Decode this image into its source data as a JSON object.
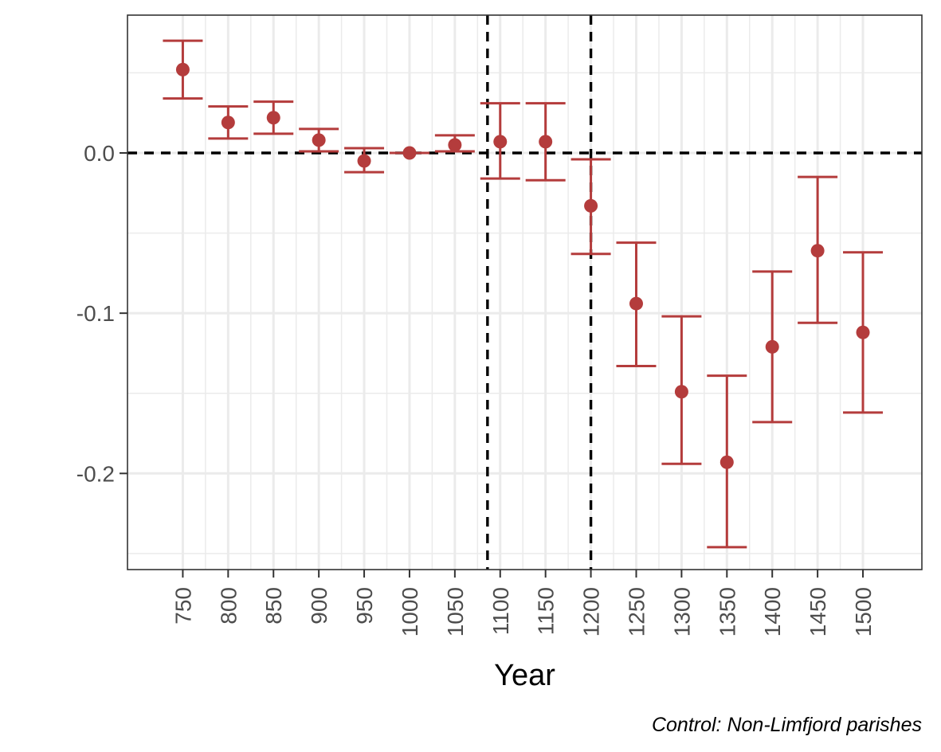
{
  "chart_data": {
    "type": "errorbar",
    "title": "",
    "xlabel": "Year",
    "ylabel": "",
    "caption": "Control: Non-Limfjord parishes",
    "x": [
      750,
      800,
      850,
      900,
      950,
      1000,
      1050,
      1100,
      1150,
      1200,
      1250,
      1300,
      1350,
      1400,
      1450,
      1500
    ],
    "x_tick_labels": [
      "750",
      "800",
      "850",
      "900",
      "950",
      "1000",
      "1050",
      "1100",
      "1150",
      "1200",
      "1250",
      "1300",
      "1350",
      "1400",
      "1450",
      "1500"
    ],
    "estimate": [
      0.052,
      0.019,
      0.022,
      0.008,
      -0.005,
      0.0,
      0.005,
      0.007,
      0.007,
      -0.033,
      -0.094,
      -0.149,
      -0.193,
      -0.121,
      -0.061,
      -0.112
    ],
    "ci_lower": [
      0.034,
      0.009,
      0.012,
      0.001,
      -0.012,
      0.0,
      0.001,
      -0.016,
      -0.017,
      -0.063,
      -0.133,
      -0.194,
      -0.246,
      -0.168,
      -0.106,
      -0.162
    ],
    "ci_upper": [
      0.07,
      0.029,
      0.032,
      0.015,
      0.003,
      0.0,
      0.011,
      0.031,
      0.031,
      -0.004,
      -0.056,
      -0.102,
      -0.139,
      -0.074,
      -0.015,
      -0.062
    ],
    "y_ticks": [
      0.0,
      -0.1,
      -0.2
    ],
    "y_tick_labels": [
      "0.0",
      "-0.1",
      "-0.2"
    ],
    "ylim": [
      -0.26,
      0.086
    ],
    "xlim": [
      689,
      1565
    ],
    "reference_lines": {
      "horizontal_y": 0.0,
      "vertical_x": [
        1086,
        1200
      ],
      "style": "dashed"
    },
    "grid": true,
    "legend": "none",
    "colors": {
      "series": "#b43c3c",
      "reference": "#000000",
      "grid": "#ebebeb",
      "panel_border": "#333333"
    }
  }
}
